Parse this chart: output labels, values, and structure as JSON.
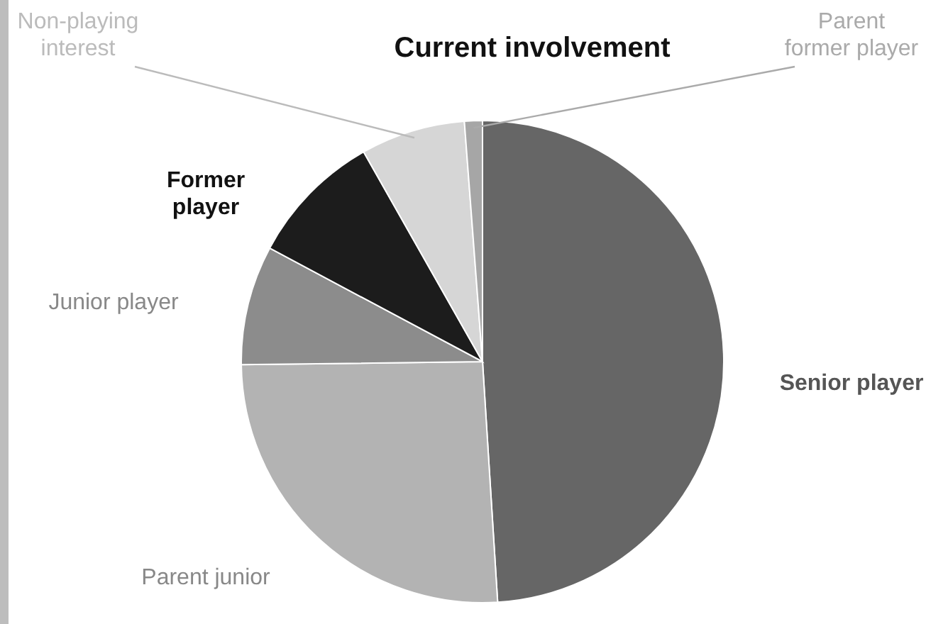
{
  "chart_data": {
    "type": "pie",
    "title": "Current involvement",
    "categories": [
      "Senior player",
      "Parent junior",
      "Junior player",
      "Former player",
      "Non-playing interest",
      "Parent former player"
    ],
    "values": [
      49,
      25.8,
      8,
      9,
      7,
      1.2
    ],
    "colors": [
      "#666666",
      "#b3b3b3",
      "#8c8c8c",
      "#1c1c1c",
      "#d6d6d6",
      "#a6a6a6"
    ]
  }
}
